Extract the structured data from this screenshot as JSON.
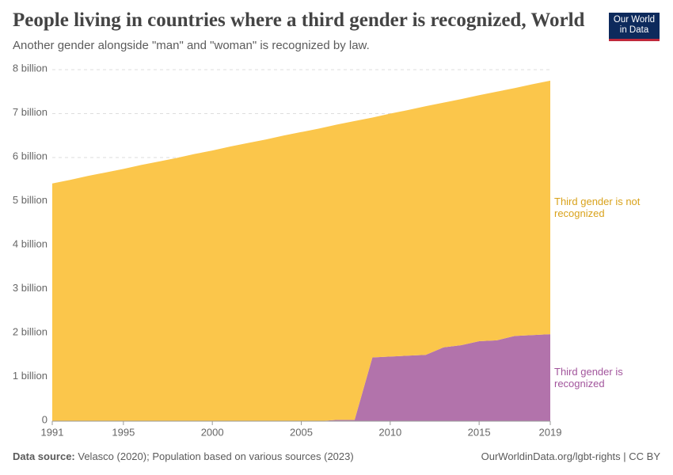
{
  "chart_data": {
    "type": "stacked-area",
    "title": "People living in countries where a third gender is recognized, World",
    "subtitle": "Another gender alongside \"man\" and \"woman\" is recognized by law.",
    "x": [
      1991,
      1992,
      1993,
      1994,
      1995,
      1996,
      1997,
      1998,
      1999,
      2000,
      2001,
      2002,
      2003,
      2004,
      2005,
      2006,
      2007,
      2008,
      2009,
      2010,
      2011,
      2012,
      2013,
      2014,
      2015,
      2016,
      2017,
      2018,
      2019
    ],
    "series": [
      {
        "name": "Third gender is recognized",
        "color": "#b273ab",
        "label_color": "#a2559c",
        "values": [
          0,
          0,
          0,
          0,
          0,
          0,
          0,
          0,
          0,
          0,
          0,
          0,
          0,
          0,
          0,
          0,
          0.03,
          0.03,
          1.45,
          1.47,
          1.49,
          1.51,
          1.68,
          1.73,
          1.82,
          1.84,
          1.94,
          1.96,
          1.98
        ]
      },
      {
        "name": "Third gender is not recognized",
        "color": "#fbc64b",
        "label_color": "#d9a21b",
        "values": [
          5.41,
          5.49,
          5.58,
          5.66,
          5.74,
          5.83,
          5.91,
          5.99,
          6.08,
          6.16,
          6.25,
          6.33,
          6.41,
          6.5,
          6.58,
          6.66,
          6.72,
          6.8,
          5.46,
          5.53,
          5.59,
          5.66,
          5.57,
          5.6,
          5.6,
          5.66,
          5.64,
          5.71,
          5.77
        ]
      }
    ],
    "xlim": [
      1991,
      2019
    ],
    "xticks": [
      1991,
      1995,
      2000,
      2005,
      2010,
      2015,
      2019
    ],
    "ylim": [
      0,
      8
    ],
    "yticks": [
      0,
      {
        "value": 1,
        "label": "1 billion"
      },
      {
        "value": 2,
        "label": "2 billion"
      },
      {
        "value": 3,
        "label": "3 billion"
      },
      {
        "value": 4,
        "label": "4 billion"
      },
      {
        "value": 5,
        "label": "5 billion"
      },
      {
        "value": 6,
        "label": "6 billion"
      },
      {
        "value": 7,
        "label": "7 billion"
      },
      {
        "value": 8,
        "label": "8 billion"
      }
    ],
    "grid": true,
    "source_label": "Data source:",
    "source": "Velasco (2020); Population based on various sources (2023)",
    "credit": "OurWorldinData.org/lgbt-rights | CC BY",
    "logo": "Our World in Data"
  }
}
